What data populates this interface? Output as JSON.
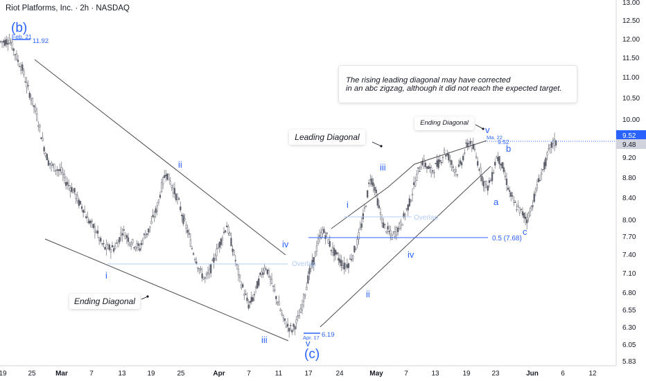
{
  "header": {
    "title": "Riot Platforms, Inc. · 2h · NASDAQ"
  },
  "note_box": {
    "line1": "The rising leading diagonal may have corrected",
    "line2": "in an abc zigzag, although it did not reach the expected target."
  },
  "pattern_labels": {
    "ending_diagonal_left": "Ending Diagonal",
    "leading_diagonal": "Leading Diagonal",
    "ending_diagonal_right": "Ending Diagonal"
  },
  "chart_data": {
    "type": "candlestick",
    "title": "Riot Platforms, Inc. · 2h · NASDAQ",
    "y_ticks": [
      "13.00",
      "12.50",
      "12.00",
      "11.50",
      "11.00",
      "10.50",
      "10.00",
      "9.20",
      "8.80",
      "8.40",
      "8.00",
      "7.70",
      "7.40",
      "7.10",
      "6.80",
      "6.55",
      "6.30",
      "6.05",
      "5.83"
    ],
    "y_scale": "log",
    "ylim": [
      5.8,
      13.0
    ],
    "x_ticks": [
      "19",
      "25",
      "Mar",
      "7",
      "13",
      "19",
      "25",
      "Apr",
      "7",
      "11",
      "17",
      "24",
      "May",
      "7",
      "13",
      "19",
      "23",
      "Jun",
      "6",
      "12"
    ],
    "last_price_labels": {
      "upper": "9.52",
      "lower": "9.48"
    },
    "annotations": {
      "wave_labels": [
        "(b)",
        "(c)",
        "i",
        "ii",
        "iii",
        "iv",
        "v",
        "i",
        "ii",
        "iii",
        "iv",
        "v",
        "a",
        "b",
        "c"
      ],
      "price_marks": [
        {
          "date": "Feb. 21",
          "value": "11.92"
        },
        {
          "date": "Apr. 17",
          "value": "6.19"
        },
        {
          "date": "Ma. 22",
          "value": "9.52"
        }
      ],
      "overlap_label": "Overlap",
      "fib_label": "0.5 (7.68)"
    },
    "close_series": [
      11.9,
      11.95,
      11.7,
      11.4,
      11.2,
      10.8,
      10.5,
      10.2,
      9.8,
      9.4,
      9.1,
      9.0,
      8.95,
      8.9,
      8.7,
      8.6,
      8.5,
      8.3,
      8.2,
      8.0,
      7.9,
      7.8,
      7.6,
      7.5,
      7.5,
      7.5,
      7.6,
      7.8,
      7.7,
      7.6,
      7.55,
      7.5,
      7.7,
      7.8,
      8.0,
      8.2,
      8.6,
      8.9,
      8.7,
      8.5,
      8.3,
      8.0,
      7.8,
      7.5,
      7.3,
      7.1,
      7.0,
      7.1,
      7.3,
      7.5,
      7.7,
      7.9,
      7.6,
      7.3,
      7.0,
      6.8,
      6.6,
      6.7,
      6.9,
      7.1,
      7.2,
      7.0,
      6.8,
      6.6,
      6.4,
      6.3,
      6.25,
      6.35,
      6.5,
      6.8,
      7.1,
      7.3,
      7.6,
      7.8,
      7.7,
      7.5,
      7.4,
      7.3,
      7.2,
      7.25,
      7.4,
      7.6,
      7.9,
      8.3,
      8.8,
      8.6,
      8.2,
      7.9,
      7.8,
      7.7,
      7.8,
      7.9,
      8.1,
      8.3,
      8.6,
      8.9,
      9.1,
      9.0,
      8.9,
      9.0,
      9.1,
      9.3,
      9.2,
      9.0,
      8.9,
      9.1,
      9.4,
      9.52,
      9.3,
      9.0,
      8.7,
      8.6,
      8.8,
      9.2,
      9.1,
      8.8,
      8.5,
      8.3,
      8.2,
      8.1,
      8.0,
      8.2,
      8.5,
      8.8,
      9.0,
      9.3,
      9.5,
      9.48
    ]
  }
}
